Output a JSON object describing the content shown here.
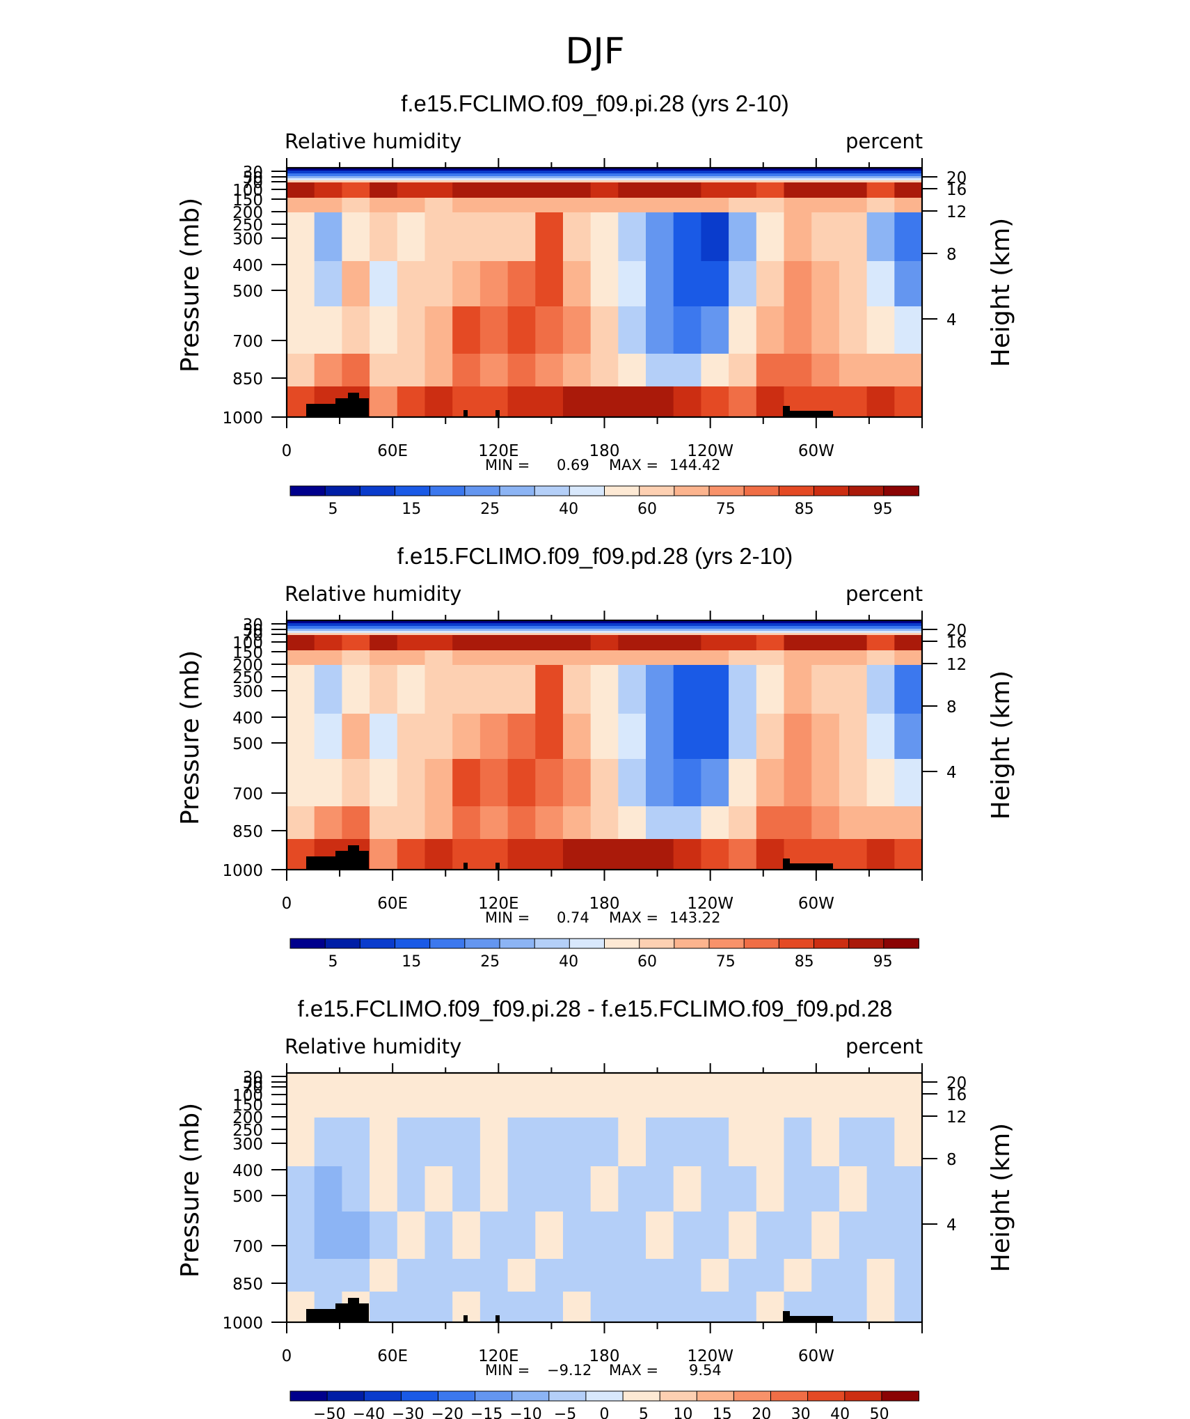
{
  "suptitle": "DJF",
  "chart_data": [
    {
      "type": "heatmap",
      "title": "f.e15.FCLIMO.f09_f09.pi.28 (yrs 2-10)",
      "left_title": "Relative humidity",
      "right_title": "percent",
      "ylabel": "Pressure (mb)",
      "ylabel_right": "Height (km)",
      "x_ticks": [
        "0",
        "60E",
        "120E",
        "180",
        "120W",
        "60W"
      ],
      "y_ticks": [
        "30",
        "50",
        "70",
        "100",
        "150",
        "200",
        "250",
        "300",
        "400",
        "500",
        "700",
        "850",
        "1000"
      ],
      "y_ticks_right": [
        "20",
        "16",
        "12",
        "8",
        "4"
      ],
      "min_label": "MIN =",
      "min_value": "0.69",
      "max_label": "MAX =",
      "max_value": "144.42",
      "colorbar_labels": [
        "5",
        "15",
        "25",
        "40",
        "60",
        "75",
        "85",
        "95"
      ],
      "field": [
        [
          55,
          35,
          60,
          66,
          60,
          62,
          64,
          66,
          68,
          88,
          68,
          60,
          40,
          28,
          18,
          15,
          35,
          60,
          72,
          66,
          62,
          35,
          22
        ],
        [
          52,
          40,
          75,
          50,
          65,
          68,
          74,
          80,
          84,
          90,
          72,
          58,
          42,
          28,
          20,
          18,
          40,
          70,
          80,
          74,
          66,
          42,
          28
        ],
        [
          60,
          55,
          70,
          60,
          62,
          72,
          86,
          82,
          88,
          84,
          80,
          62,
          40,
          30,
          24,
          30,
          55,
          72,
          80,
          74,
          70,
          58,
          50
        ],
        [
          70,
          76,
          82,
          66,
          64,
          72,
          82,
          80,
          84,
          78,
          74,
          66,
          54,
          40,
          40,
          55,
          68,
          82,
          84,
          78,
          74,
          72,
          72
        ],
        [
          86,
          92,
          94,
          80,
          86,
          92,
          90,
          88,
          92,
          92,
          96,
          96,
          98,
          98,
          92,
          86,
          84,
          92,
          90,
          90,
          90,
          92,
          90
        ]
      ],
      "upper_band": [
        97,
        95,
        90,
        98,
        94,
        92,
        96,
        100,
        98,
        96,
        96,
        94,
        98,
        100,
        98,
        94,
        92,
        90,
        96,
        100,
        98,
        90,
        97
      ]
    },
    {
      "type": "heatmap",
      "title": "f.e15.FCLIMO.f09_f09.pd.28 (yrs 2-10)",
      "left_title": "Relative humidity",
      "right_title": "percent",
      "ylabel": "Pressure (mb)",
      "ylabel_right": "Height (km)",
      "x_ticks": [
        "0",
        "60E",
        "120E",
        "180",
        "120W",
        "60W"
      ],
      "y_ticks": [
        "30",
        "50",
        "70",
        "100",
        "150",
        "200",
        "250",
        "300",
        "400",
        "500",
        "700",
        "850",
        "1000"
      ],
      "y_ticks_right": [
        "20",
        "16",
        "12",
        "8",
        "4"
      ],
      "min_label": "MIN =",
      "min_value": "0.74",
      "max_label": "MAX =",
      "max_value": "143.22",
      "colorbar_labels": [
        "5",
        "15",
        "25",
        "40",
        "60",
        "75",
        "85",
        "95"
      ],
      "field": [
        [
          55,
          36,
          60,
          66,
          60,
          62,
          64,
          66,
          68,
          88,
          68,
          60,
          40,
          28,
          19,
          16,
          36,
          60,
          72,
          66,
          62,
          36,
          24
        ],
        [
          52,
          42,
          74,
          50,
          65,
          68,
          74,
          80,
          84,
          90,
          72,
          58,
          42,
          28,
          20,
          19,
          40,
          70,
          80,
          74,
          66,
          44,
          30
        ],
        [
          60,
          56,
          70,
          60,
          62,
          72,
          86,
          82,
          88,
          84,
          80,
          62,
          40,
          30,
          25,
          30,
          55,
          72,
          80,
          74,
          70,
          58,
          50
        ],
        [
          70,
          76,
          82,
          66,
          64,
          72,
          82,
          80,
          84,
          78,
          74,
          66,
          54,
          40,
          40,
          55,
          68,
          82,
          84,
          78,
          74,
          72,
          72
        ],
        [
          86,
          92,
          94,
          80,
          86,
          92,
          90,
          88,
          92,
          92,
          96,
          96,
          98,
          98,
          92,
          86,
          84,
          92,
          90,
          90,
          90,
          92,
          90
        ]
      ],
      "upper_band": [
        97,
        95,
        90,
        98,
        94,
        92,
        96,
        100,
        98,
        96,
        96,
        94,
        98,
        100,
        98,
        94,
        92,
        90,
        96,
        100,
        98,
        90,
        97
      ]
    },
    {
      "type": "heatmap",
      "title": "f.e15.FCLIMO.f09_f09.pi.28 - f.e15.FCLIMO.f09_f09.pd.28",
      "left_title": "Relative humidity",
      "right_title": "percent",
      "ylabel": "Pressure (mb)",
      "ylabel_right": "Height (km)",
      "x_ticks": [
        "0",
        "60E",
        "120E",
        "180",
        "120W",
        "60W"
      ],
      "y_ticks": [
        "30",
        "50",
        "70",
        "100",
        "150",
        "200",
        "250",
        "300",
        "400",
        "500",
        "700",
        "850",
        "1000"
      ],
      "y_ticks_right": [
        "20",
        "16",
        "12",
        "8",
        "4"
      ],
      "min_label": "MIN =",
      "min_value": "−9.12",
      "max_label": "MAX =",
      "max_value": "9.54",
      "colorbar_labels": [
        "−50",
        "−40",
        "−30",
        "−20",
        "−15",
        "−10",
        "−5",
        "0",
        "5",
        "10",
        "15",
        "20",
        "30",
        "40",
        "50"
      ],
      "field": [
        [
          2,
          -2,
          -2,
          2,
          -2,
          -2,
          -2,
          2,
          -2,
          -2,
          -2,
          -2,
          2,
          -2,
          -2,
          -2,
          2,
          2,
          -2,
          2,
          -2,
          -2,
          2
        ],
        [
          -2,
          -7,
          -2,
          2,
          -2,
          2,
          -2,
          2,
          -2,
          -2,
          -2,
          2,
          -2,
          -2,
          2,
          -2,
          -2,
          2,
          -2,
          -2,
          2,
          -2,
          -2
        ],
        [
          -2,
          -7,
          -7,
          -2,
          2,
          -2,
          2,
          -2,
          -2,
          2,
          -2,
          -2,
          -2,
          2,
          -2,
          -2,
          2,
          -2,
          -2,
          2,
          -2,
          -2,
          -2
        ],
        [
          -2,
          -2,
          -2,
          2,
          -2,
          -2,
          -2,
          -2,
          2,
          -2,
          -2,
          -2,
          -2,
          -2,
          -2,
          2,
          -2,
          -2,
          2,
          -2,
          -2,
          2,
          -2
        ],
        [
          2,
          -2,
          2,
          -2,
          -2,
          -2,
          2,
          -2,
          -2,
          -2,
          2,
          -2,
          -2,
          -2,
          -2,
          -2,
          -2,
          2,
          -2,
          -2,
          -2,
          2,
          -2
        ]
      ],
      "upper_band": [
        2,
        2,
        2,
        2,
        2,
        2,
        2,
        2,
        2,
        3,
        2,
        2,
        2,
        2,
        2,
        2,
        2,
        3,
        2,
        2,
        2,
        2,
        2
      ]
    }
  ],
  "colors": {
    "abs_scale": [
      "#00008c",
      "#001ea6",
      "#0a3ccc",
      "#1a5ae6",
      "#3c78ee",
      "#6496f0",
      "#8cb4f4",
      "#b4cff8",
      "#d8e8fc",
      "#fde9d4",
      "#fdd0b2",
      "#fcb48e",
      "#f8926a",
      "#f06e46",
      "#e44a24",
      "#cc2e12",
      "#aa1a0a",
      "#8a0404"
    ],
    "diff_scale": [
      "#00008c",
      "#001ea6",
      "#0a3ccc",
      "#1a5ae6",
      "#3c78ee",
      "#6496f0",
      "#8cb4f4",
      "#b4cff8",
      "#d8e8fc",
      "#fde9d4",
      "#fdd0b2",
      "#fcb48e",
      "#f8926a",
      "#f06e46",
      "#e44a24",
      "#cc2e12",
      "#8a0404"
    ],
    "topography": "#000000"
  }
}
